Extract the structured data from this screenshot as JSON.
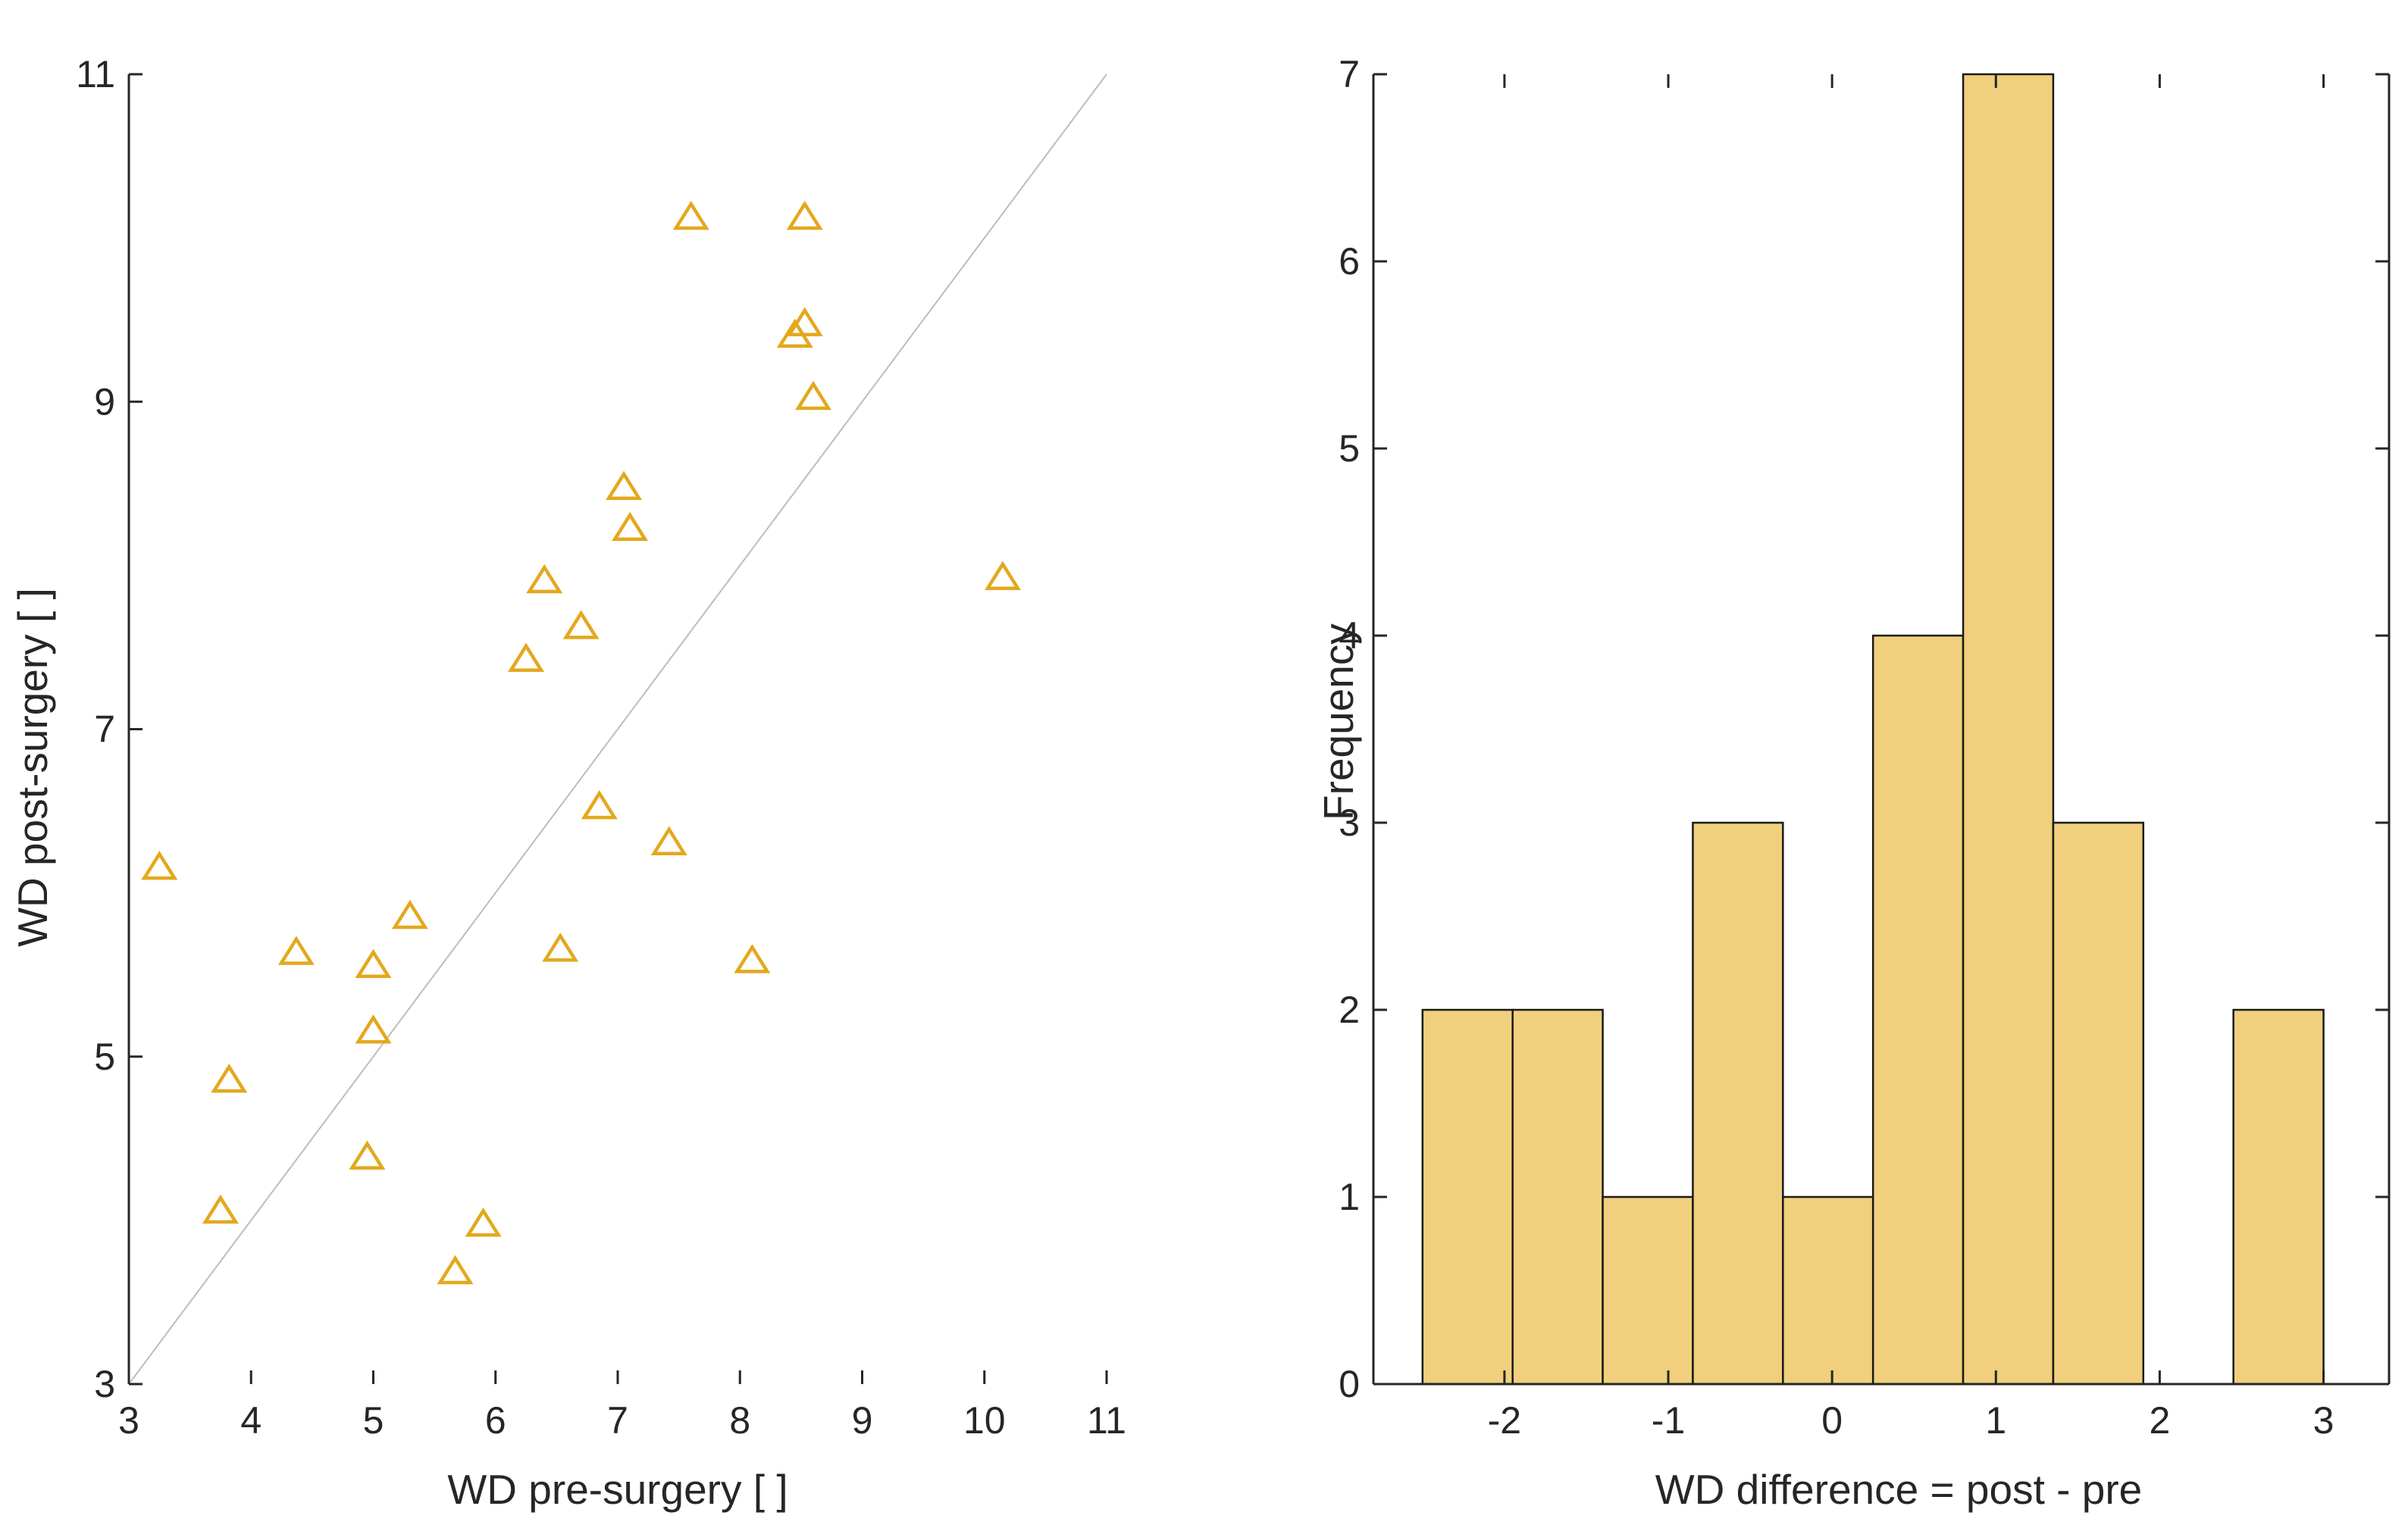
{
  "colors": {
    "marker": "#E3A81C",
    "bar_fill": "#F0D07C",
    "bar_edge": "#1A1A1A",
    "axis": "#262626",
    "identity_line": "#BDBDBD"
  },
  "chart_data": [
    {
      "type": "scatter",
      "title": "",
      "xlabel": "WD pre-surgery [ ]",
      "ylabel": "WD post-surgery [ ]",
      "xlim": [
        3,
        11
      ],
      "ylim": [
        3,
        11
      ],
      "xticks": [
        3,
        4,
        5,
        6,
        7,
        8,
        9,
        10,
        11
      ],
      "xtick_labels": [
        "3",
        "4",
        "5",
        "6",
        "7",
        "8",
        "9",
        "10",
        "11"
      ],
      "yticks": [
        3,
        5,
        7,
        9,
        11
      ],
      "ytick_labels": [
        "3",
        "5",
        "7",
        "9",
        "11"
      ],
      "identity_line": [
        [
          3,
          3
        ],
        [
          11,
          11
        ]
      ],
      "marker": "triangle",
      "points": [
        {
          "x": 3.25,
          "y": 6.15
        },
        {
          "x": 3.75,
          "y": 4.05
        },
        {
          "x": 3.82,
          "y": 4.85
        },
        {
          "x": 4.37,
          "y": 5.63
        },
        {
          "x": 4.95,
          "y": 4.38
        },
        {
          "x": 5.0,
          "y": 5.55
        },
        {
          "x": 5.0,
          "y": 5.15
        },
        {
          "x": 5.3,
          "y": 5.85
        },
        {
          "x": 5.67,
          "y": 3.68
        },
        {
          "x": 5.9,
          "y": 3.97
        },
        {
          "x": 6.25,
          "y": 7.42
        },
        {
          "x": 6.4,
          "y": 7.9
        },
        {
          "x": 6.53,
          "y": 5.65
        },
        {
          "x": 6.7,
          "y": 7.62
        },
        {
          "x": 6.85,
          "y": 6.52
        },
        {
          "x": 7.05,
          "y": 8.47
        },
        {
          "x": 7.1,
          "y": 8.22
        },
        {
          "x": 7.42,
          "y": 6.3
        },
        {
          "x": 7.6,
          "y": 10.12
        },
        {
          "x": 8.1,
          "y": 5.58
        },
        {
          "x": 8.45,
          "y": 9.4
        },
        {
          "x": 8.53,
          "y": 9.47
        },
        {
          "x": 8.53,
          "y": 10.12
        },
        {
          "x": 8.6,
          "y": 9.02
        },
        {
          "x": 10.15,
          "y": 7.92
        }
      ]
    },
    {
      "type": "bar",
      "title": "",
      "xlabel": "WD difference = post - pre",
      "ylabel": "Frequency",
      "xlim": [
        -2.8,
        3.4
      ],
      "ylim": [
        0,
        7
      ],
      "xticks": [
        -2,
        -1,
        0,
        1,
        2,
        3
      ],
      "xtick_labels": [
        "-2",
        "-1",
        "0",
        "1",
        "2",
        "3"
      ],
      "yticks": [
        0,
        1,
        2,
        3,
        4,
        5,
        6,
        7
      ],
      "ytick_labels": [
        "0",
        "1",
        "2",
        "3",
        "4",
        "5",
        "6",
        "7"
      ],
      "bin_edges": [
        -2.5,
        -1.95,
        -1.4,
        -0.85,
        -0.3,
        0.25,
        0.8,
        1.35,
        1.9,
        2.45,
        3.0
      ],
      "values": [
        2,
        2,
        1,
        3,
        1,
        4,
        7,
        3,
        0,
        2
      ]
    }
  ]
}
